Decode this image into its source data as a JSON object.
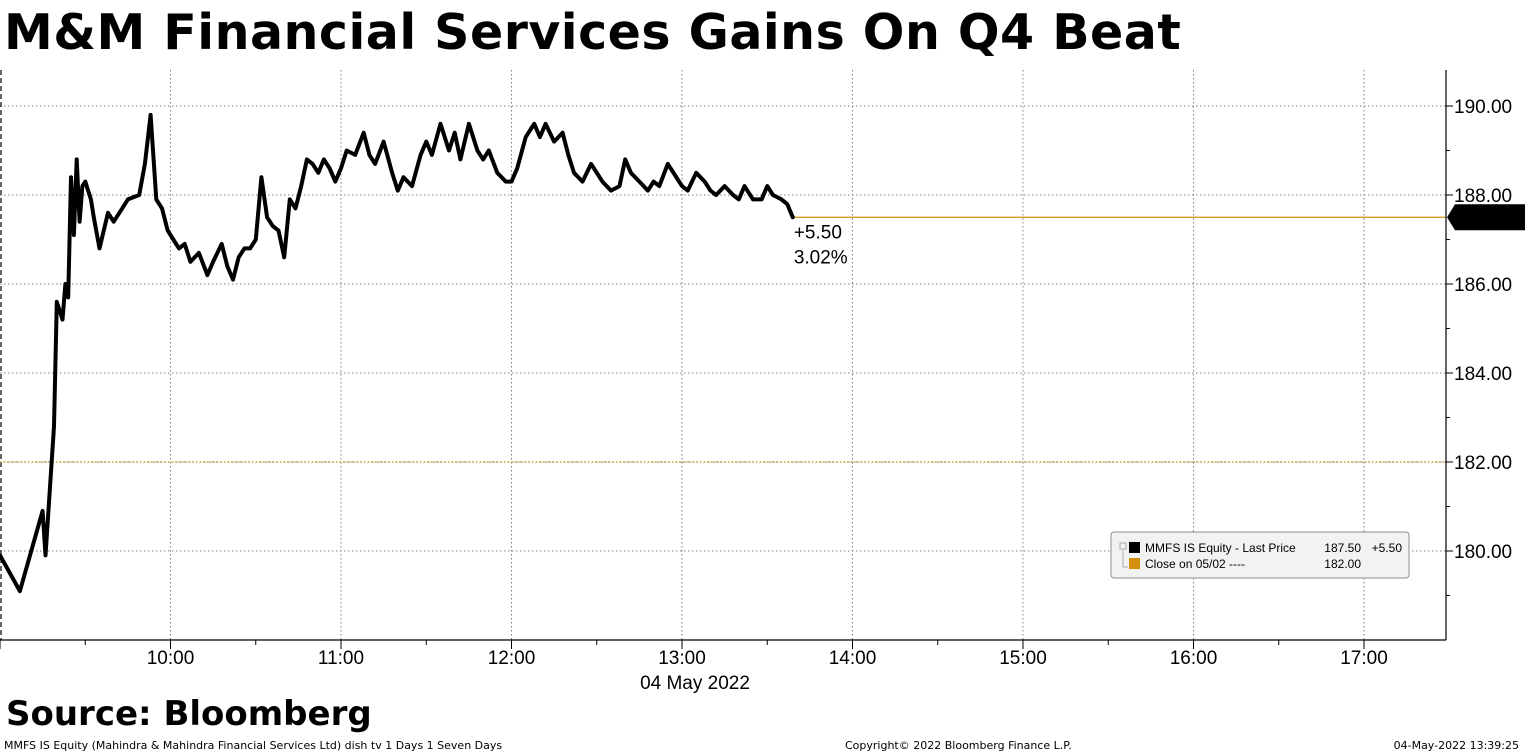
{
  "title": "M&M Financial Services Gains On Q4 Beat",
  "source": "Source: Bloomberg",
  "footer": {
    "left": "MMFS IS Equity (Mahindra & Mahindra Financial Services Ltd) dish tv 1 Days 1 Seven Days",
    "center": "Copyright© 2022 Bloomberg Finance L.P.",
    "right": "04-May-2022 13:39:25"
  },
  "colors": {
    "line": "#000000",
    "close": "#d4900d",
    "grid": "#7f7f7f"
  },
  "chart_data": {
    "type": "line",
    "xlabel": "04 May 2022",
    "ylabel": "",
    "x_ticks": [
      "10:00",
      "11:00",
      "12:00",
      "13:00",
      "14:00",
      "15:00",
      "16:00",
      "17:00"
    ],
    "y_ticks": [
      "180.00",
      "182.00",
      "184.00",
      "186.00",
      "188.00",
      "190.00"
    ],
    "ylim": [
      178,
      191
    ],
    "grid": true,
    "legend_position": "bottom-right",
    "last_price_label": "187.50",
    "change_label": "+5.50",
    "change_pct_label": "3.02%",
    "legend": [
      {
        "marker": "black",
        "name": "MMFS IS Equity - Last Price",
        "value": "187.50",
        "change": "+5.50"
      },
      {
        "marker": "orange",
        "name": "Close on 05/02 ----",
        "value": "182.00",
        "change": ""
      }
    ],
    "series": [
      {
        "name": "MMFS IS Equity - Last Price",
        "x": [
          "09:00",
          "09:07",
          "09:15",
          "09:16",
          "09:19",
          "09:20",
          "09:22",
          "09:23",
          "09:24",
          "09:25",
          "09:26",
          "09:27",
          "09:28",
          "09:29",
          "09:30",
          "09:32",
          "09:33",
          "09:35",
          "09:38",
          "09:40",
          "09:43",
          "09:45",
          "09:49",
          "09:51",
          "09:53",
          "09:55",
          "09:57",
          "09:59",
          "10:01",
          "10:03",
          "10:05",
          "10:07",
          "10:10",
          "10:13",
          "10:15",
          "10:18",
          "10:20",
          "10:22",
          "10:24",
          "10:26",
          "10:28",
          "10:30",
          "10:32",
          "10:34",
          "10:36",
          "10:38",
          "10:40",
          "10:42",
          "10:44",
          "10:46",
          "10:48",
          "10:50",
          "10:52",
          "10:54",
          "10:56",
          "10:58",
          "11:00",
          "11:02",
          "11:05",
          "11:08",
          "11:10",
          "11:12",
          "11:15",
          "11:18",
          "11:20",
          "11:22",
          "11:25",
          "11:28",
          "11:30",
          "11:32",
          "11:35",
          "11:38",
          "11:40",
          "11:42",
          "11:45",
          "11:48",
          "11:50",
          "11:52",
          "11:55",
          "11:58",
          "12:00",
          "12:02",
          "12:05",
          "12:08",
          "12:10",
          "12:12",
          "12:15",
          "12:18",
          "12:20",
          "12:22",
          "12:25",
          "12:28",
          "12:30",
          "12:32",
          "12:35",
          "12:38",
          "12:40",
          "12:42",
          "12:45",
          "12:48",
          "12:50",
          "12:52",
          "12:55",
          "12:58",
          "13:00",
          "13:02",
          "13:05",
          "13:08",
          "13:10",
          "13:12",
          "13:15",
          "13:18",
          "13:20",
          "13:22",
          "13:25",
          "13:28",
          "13:30",
          "13:32",
          "13:35",
          "13:37",
          "13:39"
        ],
        "values": [
          179.9,
          179.1,
          180.9,
          179.9,
          182.8,
          185.6,
          185.2,
          186.0,
          185.7,
          188.4,
          187.1,
          188.8,
          187.4,
          188.2,
          188.3,
          187.9,
          187.5,
          186.8,
          187.6,
          187.4,
          187.7,
          187.9,
          188.0,
          188.7,
          189.8,
          187.9,
          187.7,
          187.2,
          187.0,
          186.8,
          186.9,
          186.5,
          186.7,
          186.2,
          186.5,
          186.9,
          186.4,
          186.1,
          186.6,
          186.8,
          186.8,
          187.0,
          188.4,
          187.5,
          187.3,
          187.2,
          186.6,
          187.9,
          187.7,
          188.2,
          188.8,
          188.7,
          188.5,
          188.8,
          188.6,
          188.3,
          188.6,
          189.0,
          188.9,
          189.4,
          188.9,
          188.7,
          189.2,
          188.5,
          188.1,
          188.4,
          188.2,
          188.9,
          189.2,
          188.9,
          189.6,
          189.0,
          189.4,
          188.8,
          189.6,
          189.0,
          188.8,
          189.0,
          188.5,
          188.3,
          188.3,
          188.6,
          189.3,
          189.6,
          189.3,
          189.6,
          189.2,
          189.4,
          188.9,
          188.5,
          188.3,
          188.7,
          188.5,
          188.3,
          188.1,
          188.2,
          188.8,
          188.5,
          188.3,
          188.1,
          188.3,
          188.2,
          188.7,
          188.4,
          188.2,
          188.1,
          188.5,
          188.3,
          188.1,
          188.0,
          188.2,
          188.0,
          187.9,
          188.2,
          187.9,
          187.9,
          188.2,
          188.0,
          187.9,
          187.8,
          187.5
        ]
      }
    ],
    "reference_lines": [
      {
        "name": "Close on 05/02",
        "value": 182.0
      }
    ]
  }
}
